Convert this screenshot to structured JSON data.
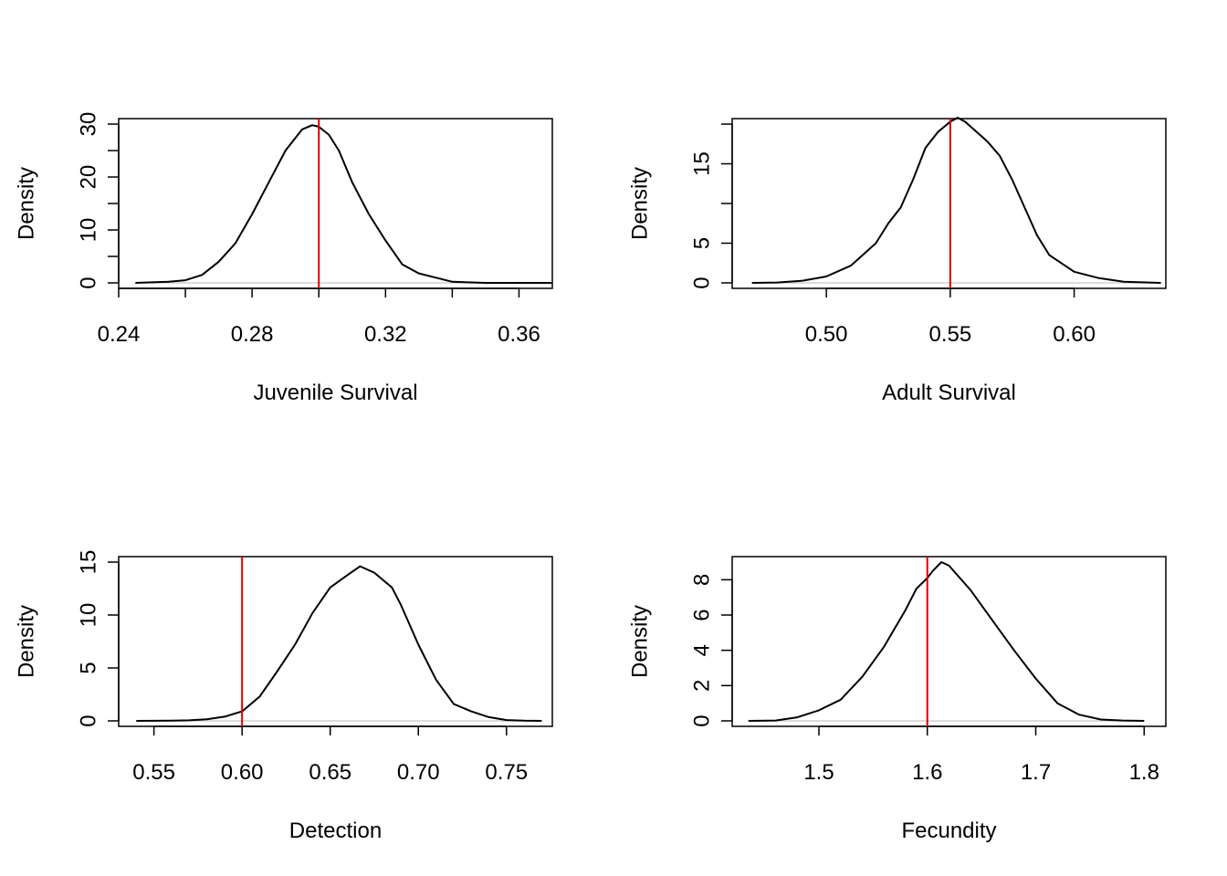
{
  "colors": {
    "density": "#000000",
    "reference": "#e00000",
    "baseline": "#c8c8c8"
  },
  "chart_data": [
    {
      "type": "line",
      "xlabel": "Juvenile Survival",
      "ylabel": "Density",
      "xlim": [
        0.24,
        0.37
      ],
      "ylim": [
        0,
        30
      ],
      "xticks": [
        0.24,
        0.26,
        0.28,
        0.3,
        0.32,
        0.34,
        0.36
      ],
      "xtick_labels": [
        "0.24",
        "",
        "0.28",
        "",
        "0.32",
        "",
        "0.36"
      ],
      "yticks": [
        0,
        5,
        10,
        15,
        20,
        25,
        30
      ],
      "ytick_labels": [
        "0",
        "",
        "10",
        "",
        "20",
        "",
        "30"
      ],
      "reference_x": 0.3,
      "x": [
        0.245,
        0.255,
        0.26,
        0.265,
        0.27,
        0.275,
        0.28,
        0.285,
        0.29,
        0.295,
        0.298,
        0.3,
        0.303,
        0.306,
        0.31,
        0.315,
        0.32,
        0.325,
        0.33,
        0.335,
        0.34,
        0.35,
        0.36,
        0.37
      ],
      "y": [
        0,
        0.2,
        0.5,
        1.5,
        4,
        7.5,
        13,
        19,
        25,
        29,
        29.8,
        29.5,
        28,
        25,
        19,
        13,
        8,
        3.5,
        1.8,
        1,
        0.2,
        0,
        0,
        0
      ]
    },
    {
      "type": "line",
      "xlabel": "Adult Survival",
      "ylabel": "Density",
      "xlim": [
        0.462,
        0.637
      ],
      "ylim": [
        0,
        20
      ],
      "xticks": [
        0.5,
        0.55,
        0.6
      ],
      "xtick_labels": [
        "0.50",
        "0.55",
        "0.60"
      ],
      "yticks": [
        0,
        5,
        10,
        15,
        20
      ],
      "ytick_labels": [
        "0",
        "5",
        "",
        "15",
        ""
      ],
      "reference_x": 0.55,
      "x": [
        0.47,
        0.48,
        0.49,
        0.5,
        0.51,
        0.52,
        0.525,
        0.53,
        0.535,
        0.54,
        0.545,
        0.55,
        0.553,
        0.556,
        0.56,
        0.565,
        0.57,
        0.575,
        0.58,
        0.585,
        0.59,
        0.6,
        0.61,
        0.62,
        0.635
      ],
      "y": [
        0,
        0.05,
        0.25,
        0.8,
        2.2,
        5,
        7.5,
        9.5,
        13,
        17,
        19,
        20.3,
        20.8,
        20.3,
        19.2,
        17.8,
        16,
        13,
        9.5,
        6,
        3.5,
        1.4,
        0.6,
        0.15,
        0
      ]
    },
    {
      "type": "line",
      "xlabel": "Detection",
      "ylabel": "Density",
      "xlim": [
        0.53,
        0.776
      ],
      "ylim": [
        0,
        15
      ],
      "xticks": [
        0.55,
        0.6,
        0.65,
        0.7,
        0.75
      ],
      "xtick_labels": [
        "0.55",
        "0.60",
        "0.65",
        "0.70",
        "0.75"
      ],
      "yticks": [
        0,
        5,
        10,
        15
      ],
      "ytick_labels": [
        "0",
        "5",
        "10",
        "15"
      ],
      "reference_x": 0.6,
      "x": [
        0.54,
        0.56,
        0.57,
        0.58,
        0.59,
        0.6,
        0.61,
        0.62,
        0.63,
        0.64,
        0.65,
        0.66,
        0.667,
        0.675,
        0.685,
        0.69,
        0.7,
        0.71,
        0.72,
        0.73,
        0.74,
        0.75,
        0.76,
        0.77
      ],
      "y": [
        0,
        0.02,
        0.05,
        0.15,
        0.4,
        0.9,
        2.3,
        4.7,
        7.2,
        10.2,
        12.6,
        13.8,
        14.6,
        14,
        12.6,
        11,
        7.2,
        3.9,
        1.6,
        0.9,
        0.35,
        0.08,
        0.02,
        0
      ]
    },
    {
      "type": "line",
      "xlabel": "Fecundity",
      "ylabel": "Density",
      "xlim": [
        1.42,
        1.82
      ],
      "ylim": [
        0,
        9
      ],
      "xticks": [
        1.5,
        1.6,
        1.7,
        1.8
      ],
      "xtick_labels": [
        "1.5",
        "1.6",
        "1.7",
        "1.8"
      ],
      "yticks": [
        0,
        2,
        4,
        6,
        8
      ],
      "ytick_labels": [
        "0",
        "2",
        "4",
        "6",
        "8"
      ],
      "reference_x": 1.6,
      "x": [
        1.435,
        1.46,
        1.48,
        1.5,
        1.52,
        1.54,
        1.56,
        1.58,
        1.59,
        1.6,
        1.605,
        1.613,
        1.62,
        1.64,
        1.66,
        1.68,
        1.7,
        1.72,
        1.74,
        1.76,
        1.78,
        1.8
      ],
      "y": [
        0,
        0.02,
        0.2,
        0.6,
        1.2,
        2.5,
        4.2,
        6.3,
        7.5,
        8.1,
        8.5,
        9.0,
        8.8,
        7.4,
        5.7,
        4.0,
        2.4,
        1.0,
        0.35,
        0.08,
        0.02,
        0
      ]
    }
  ]
}
